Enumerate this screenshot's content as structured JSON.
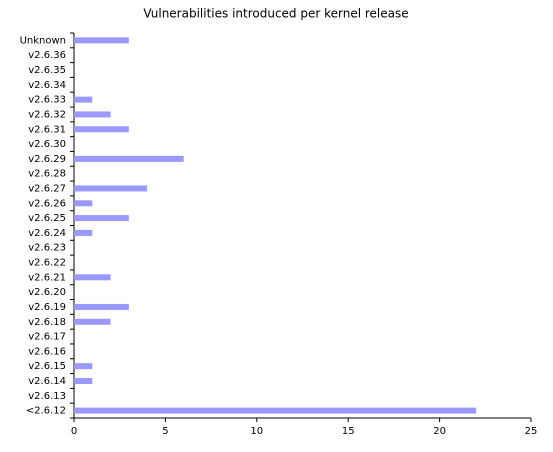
{
  "chart_data": {
    "type": "barh",
    "title": "Vulnerabilities introduced per kernel release",
    "categories": [
      "Unknown",
      "v2.6.36",
      "v2.6.35",
      "v2.6.34",
      "v2.6.33",
      "v2.6.32",
      "v2.6.31",
      "v2.6.30",
      "v2.6.29",
      "v2.6.28",
      "v2.6.27",
      "v2.6.26",
      "v2.6.25",
      "v2.6.24",
      "v2.6.23",
      "v2.6.22",
      "v2.6.21",
      "v2.6.20",
      "v2.6.19",
      "v2.6.18",
      "v2.6.17",
      "v2.6.16",
      "v2.6.15",
      "v2.6.14",
      "v2.6.13",
      "<2.6.12"
    ],
    "values": [
      3,
      0,
      0,
      0,
      1,
      2,
      3,
      0,
      6,
      0,
      4,
      1,
      3,
      1,
      0,
      0,
      2,
      0,
      3,
      2,
      0,
      0,
      1,
      1,
      0,
      22
    ],
    "color": "#9999ff",
    "xlim": [
      0,
      25
    ],
    "xticks": [
      0,
      5,
      10,
      15,
      20,
      25
    ],
    "grid": false
  }
}
